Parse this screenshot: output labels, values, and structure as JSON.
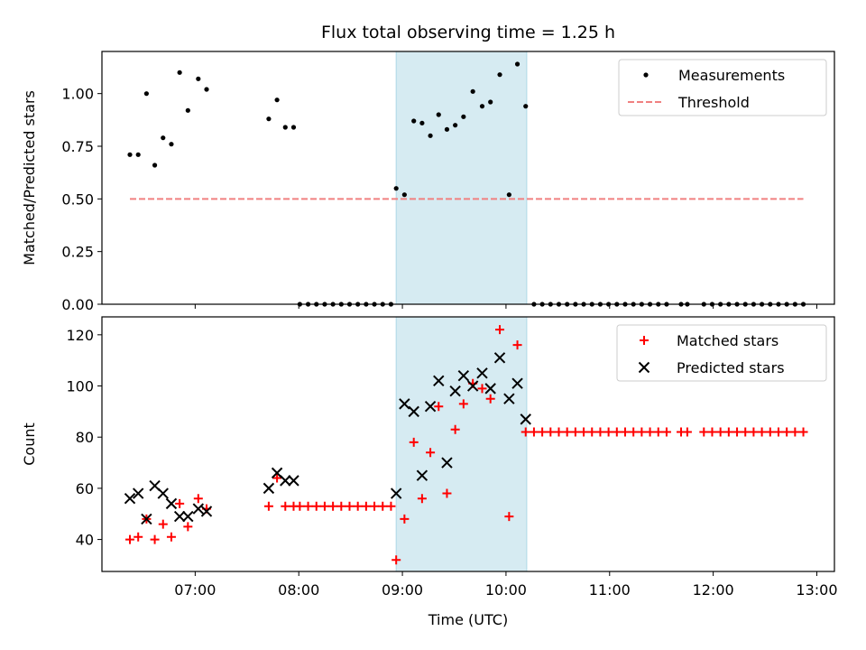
{
  "chart_data": {
    "title": "Flux total observing time = 1.25 h",
    "xlabel": "Time (UTC)",
    "x_unit": "hour of day (UTC)",
    "xlim": [
      6.1,
      13.17
    ],
    "x_ticks": [
      7,
      8,
      9,
      10,
      11,
      12,
      13
    ],
    "x_tick_labels": [
      "07:00",
      "08:00",
      "09:00",
      "10:00",
      "11:00",
      "12:00",
      "13:00"
    ],
    "shaded_region": {
      "x_start": 8.94,
      "x_end": 10.2,
      "color": "#add8e6"
    },
    "panels": [
      {
        "type": "scatter",
        "ylabel": "Matched/Predicted stars",
        "ylim": [
          0,
          1.2
        ],
        "y_ticks": [
          0.0,
          0.25,
          0.5,
          0.75,
          1.0
        ],
        "y_tick_labels": [
          "0.00",
          "0.25",
          "0.50",
          "0.75",
          "1.00"
        ],
        "legend_position": "upper right",
        "series": [
          {
            "name": "Measurements",
            "kind": "points",
            "marker": "dot",
            "color": "#000000",
            "x": [
              6.37,
              6.45,
              6.53,
              6.61,
              6.69,
              6.77,
              6.85,
              6.93,
              7.03,
              7.11,
              7.71,
              7.79,
              7.87,
              7.95,
              8.01,
              8.09,
              8.17,
              8.25,
              8.33,
              8.41,
              8.49,
              8.57,
              8.65,
              8.73,
              8.81,
              8.89,
              8.94,
              9.02,
              9.11,
              9.19,
              9.27,
              9.35,
              9.43,
              9.51,
              9.59,
              9.68,
              9.77,
              9.85,
              9.94,
              10.03,
              10.11,
              10.19,
              10.27,
              10.35,
              10.43,
              10.51,
              10.59,
              10.67,
              10.75,
              10.83,
              10.91,
              10.99,
              11.07,
              11.15,
              11.23,
              11.31,
              11.39,
              11.47,
              11.55,
              11.69,
              11.75,
              11.91,
              11.99,
              12.07,
              12.15,
              12.23,
              12.31,
              12.39,
              12.47,
              12.55,
              12.63,
              12.71,
              12.79,
              12.87
            ],
            "y": [
              0.71,
              0.71,
              1.0,
              0.66,
              0.79,
              0.76,
              1.1,
              0.92,
              1.07,
              1.02,
              0.88,
              0.97,
              0.84,
              0.84,
              0,
              0,
              0,
              0,
              0,
              0,
              0,
              0,
              0,
              0,
              0,
              0,
              0.55,
              0.52,
              0.87,
              0.86,
              0.8,
              0.9,
              0.83,
              0.85,
              0.89,
              1.01,
              0.94,
              0.96,
              1.09,
              0.52,
              1.14,
              0.94,
              0,
              0,
              0,
              0,
              0,
              0,
              0,
              0,
              0,
              0,
              0,
              0,
              0,
              0,
              0,
              0,
              0,
              0,
              0,
              0,
              0,
              0,
              0,
              0,
              0,
              0,
              0,
              0,
              0,
              0,
              0,
              0
            ]
          },
          {
            "name": "Threshold",
            "kind": "dashed-line",
            "color": "#f08080",
            "x": [
              6.37,
              12.87
            ],
            "y": [
              0.5,
              0.5
            ]
          }
        ]
      },
      {
        "type": "scatter",
        "ylabel": "Count",
        "ylim": [
          27.5,
          127
        ],
        "y_ticks": [
          40,
          60,
          80,
          100,
          120
        ],
        "y_tick_labels": [
          "40",
          "60",
          "80",
          "100",
          "120"
        ],
        "legend_position": "upper right",
        "series": [
          {
            "name": "Matched stars",
            "kind": "points",
            "marker": "plus",
            "color": "#ff0000",
            "x": [
              6.37,
              6.45,
              6.53,
              6.61,
              6.69,
              6.77,
              6.85,
              6.93,
              7.03,
              7.11,
              7.71,
              7.79,
              7.87,
              7.95,
              8.01,
              8.09,
              8.17,
              8.25,
              8.33,
              8.41,
              8.49,
              8.57,
              8.65,
              8.73,
              8.81,
              8.89,
              8.94,
              9.02,
              9.11,
              9.19,
              9.27,
              9.35,
              9.43,
              9.51,
              9.59,
              9.68,
              9.77,
              9.85,
              9.94,
              10.03,
              10.11,
              10.19,
              10.27,
              10.35,
              10.43,
              10.51,
              10.59,
              10.67,
              10.75,
              10.83,
              10.91,
              10.99,
              11.07,
              11.15,
              11.23,
              11.31,
              11.39,
              11.47,
              11.55,
              11.69,
              11.75,
              11.91,
              11.99,
              12.07,
              12.15,
              12.23,
              12.31,
              12.39,
              12.47,
              12.55,
              12.63,
              12.71,
              12.79,
              12.87
            ],
            "y": [
              40,
              41,
              48,
              40,
              46,
              41,
              54,
              45,
              56,
              52,
              53,
              64,
              53,
              53,
              53,
              53,
              53,
              53,
              53,
              53,
              53,
              53,
              53,
              53,
              53,
              53,
              32,
              48,
              78,
              56,
              74,
              92,
              58,
              83,
              93,
              101,
              99,
              95,
              122,
              49,
              116,
              82,
              82,
              82,
              82,
              82,
              82,
              82,
              82,
              82,
              82,
              82,
              82,
              82,
              82,
              82,
              82,
              82,
              82,
              82,
              82,
              82,
              82,
              82,
              82,
              82,
              82,
              82,
              82,
              82,
              82,
              82,
              82,
              82
            ]
          },
          {
            "name": "Predicted stars",
            "kind": "points",
            "marker": "x",
            "color": "#000000",
            "x": [
              6.37,
              6.45,
              6.53,
              6.61,
              6.69,
              6.77,
              6.85,
              6.93,
              7.03,
              7.11,
              7.71,
              7.79,
              7.87,
              7.95,
              8.94,
              9.02,
              9.11,
              9.19,
              9.27,
              9.35,
              9.43,
              9.51,
              9.59,
              9.68,
              9.77,
              9.85,
              9.94,
              10.03,
              10.11,
              10.19
            ],
            "y": [
              56,
              58,
              48,
              61,
              58,
              54,
              49,
              49,
              52,
              51,
              60,
              66,
              63,
              63,
              58,
              93,
              90,
              65,
              92,
              102,
              70,
              98,
              104,
              100,
              105,
              99,
              111,
              95,
              101,
              87
            ]
          }
        ]
      }
    ]
  }
}
